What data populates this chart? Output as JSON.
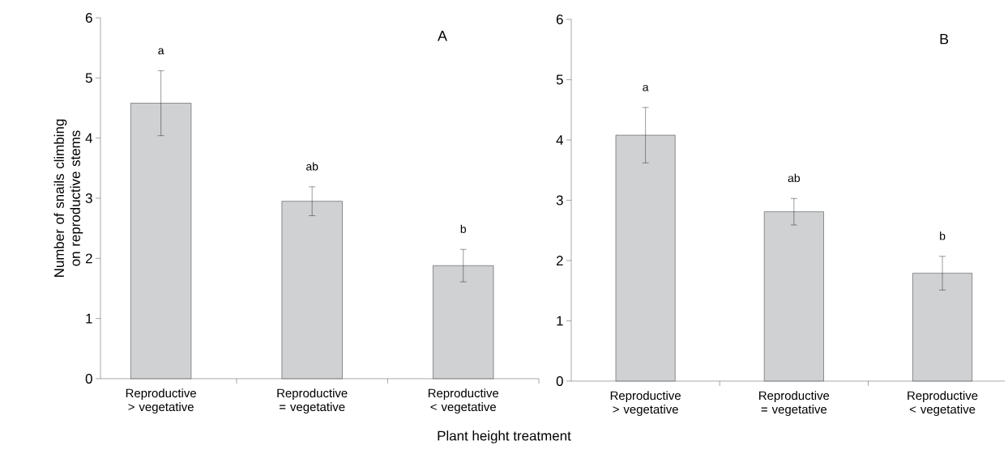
{
  "chart_data": [
    {
      "type": "bar",
      "title": "A",
      "xlabel": "Plant height treatment",
      "ylabel": "Number of snails climbing on reproductive stems",
      "categories": [
        "Reproductive > vegetative",
        "Reproductive = vegetative",
        "Reproductive < vegetative"
      ],
      "values": [
        4.58,
        2.95,
        1.88
      ],
      "errors": [
        0.54,
        0.24,
        0.27
      ],
      "color": "#d0d1d3",
      "ylim": [
        0,
        6
      ],
      "yticks": [
        0,
        1,
        2,
        3,
        4,
        5,
        6
      ],
      "annotations": [
        "a",
        "ab",
        "b"
      ]
    },
    {
      "type": "bar",
      "title": "B",
      "categories": [
        "Reproductive > vegetative",
        "Reproductive = vegetative",
        "Reproductive < vegetative"
      ],
      "values": [
        4.08,
        2.81,
        1.79
      ],
      "errors": [
        0.46,
        0.22,
        0.28
      ],
      "color": "#d0d1d3",
      "ylim": [
        0,
        6
      ],
      "yticks": [
        0,
        1,
        2,
        3,
        4,
        5,
        6
      ],
      "annotations": [
        "a",
        "ab",
        "b"
      ]
    }
  ]
}
